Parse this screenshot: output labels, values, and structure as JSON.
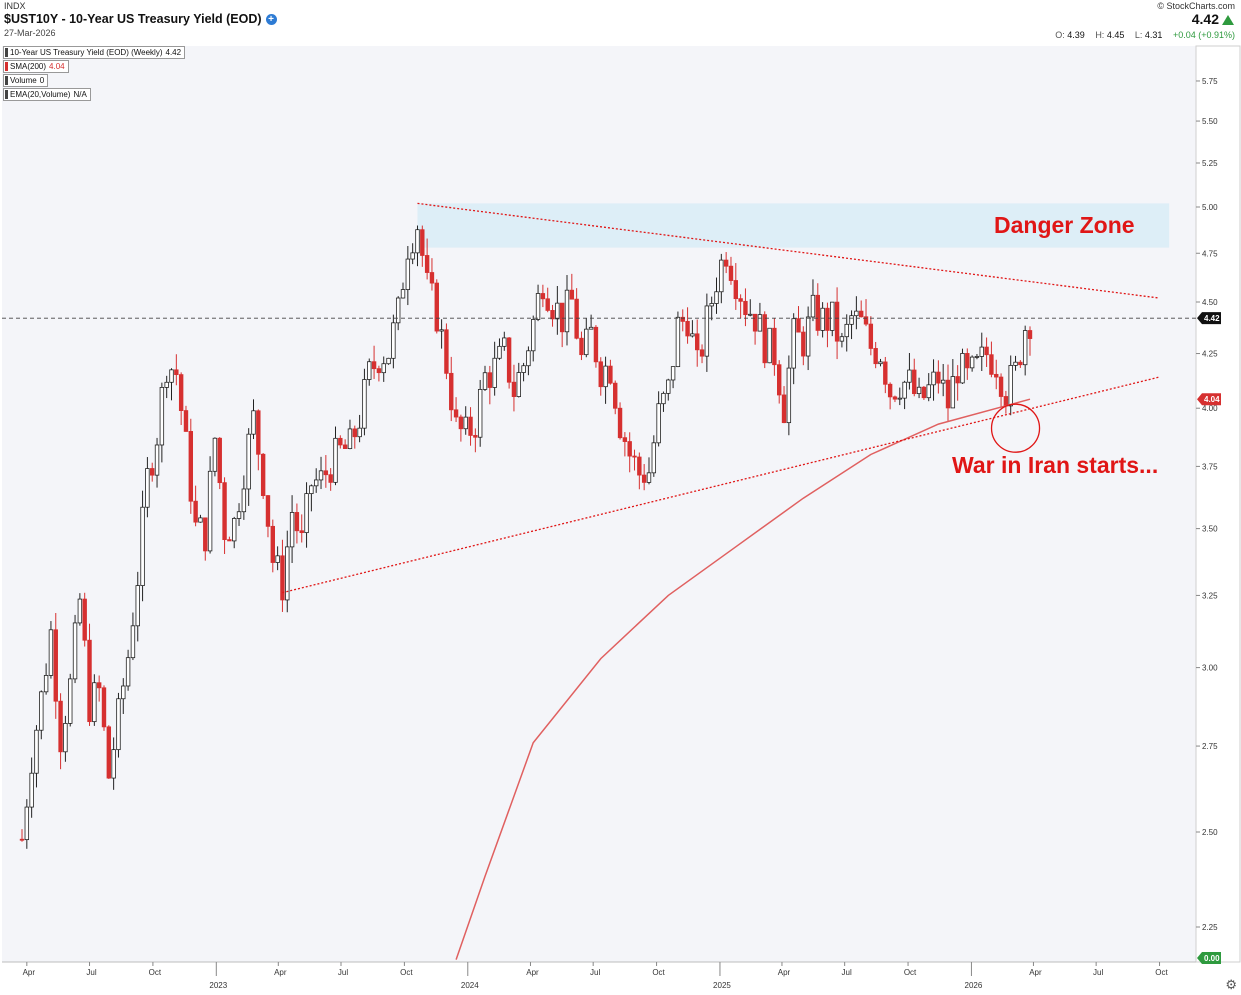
{
  "header": {
    "exchange": "INDX",
    "title": "$UST10Y - 10-Year US Treasury Yield (EOD)",
    "date": "27-Mar-2026",
    "brand": "© StockCharts.com",
    "last_price": "4.42",
    "ohlc": {
      "o_label": "O:",
      "o": "4.39",
      "h_label": "H:",
      "h": "4.45",
      "l_label": "L:",
      "l": "4.31",
      "change": "+0.04 (+0.91%)"
    }
  },
  "legend": [
    {
      "label": "10-Year US Treasury Yield (EOD) (Weekly)",
      "value": "4.42"
    },
    {
      "label": "SMA(200)",
      "value": "4.04"
    },
    {
      "label": "Volume",
      "value": "0"
    },
    {
      "label": "EMA(20,Volume)",
      "value": "N/A"
    }
  ],
  "annotations": {
    "danger_zone": "Danger Zone",
    "war": "War in Iran starts..."
  },
  "colors": {
    "up": "#222222",
    "down": "#d63030",
    "sma": "#e06060",
    "trend": "#e01616",
    "zone": "#d8ecf7",
    "price_tag": "#111111",
    "sma_tag": "#d63030",
    "zero_tag": "#2e9a3e"
  },
  "chart_data": {
    "type": "candlestick",
    "interval": "weekly",
    "x_ticks": [
      "Apr",
      "Jul",
      "Oct",
      "2023",
      "Apr",
      "Jul",
      "Oct",
      "2024",
      "Apr",
      "Jul",
      "Oct",
      "2025",
      "Apr",
      "Jul",
      "Oct",
      "2026",
      "Apr",
      "Jul",
      "Oct"
    ],
    "y_ticks": [
      "5.75",
      "5.50",
      "5.25",
      "5.00",
      "4.75",
      "4.50",
      "4.25",
      "4.00",
      "3.75",
      "3.50",
      "3.25",
      "3.00",
      "2.75",
      "2.50",
      "2.25"
    ],
    "y_scale": "log",
    "ylim": [
      2.17,
      5.9
    ],
    "price_tags": {
      "last": "4.42",
      "sma": "4.04",
      "volume": "0.00"
    },
    "path": [
      [
        "2022-03-25",
        2.48
      ],
      [
        "2022-04-08",
        2.72
      ],
      [
        "2022-04-22",
        2.9
      ],
      [
        "2022-05-06",
        3.12
      ],
      [
        "2022-05-20",
        2.78
      ],
      [
        "2022-06-03",
        2.94
      ],
      [
        "2022-06-17",
        3.23
      ],
      [
        "2022-07-01",
        2.88
      ],
      [
        "2022-07-15",
        2.92
      ],
      [
        "2022-07-29",
        2.66
      ],
      [
        "2022-08-12",
        2.84
      ],
      [
        "2022-08-26",
        3.04
      ],
      [
        "2022-09-09",
        3.32
      ],
      [
        "2022-09-23",
        3.7
      ],
      [
        "2022-10-07",
        3.89
      ],
      [
        "2022-10-21",
        4.21
      ],
      [
        "2022-11-04",
        4.16
      ],
      [
        "2022-11-18",
        3.83
      ],
      [
        "2022-12-02",
        3.5
      ],
      [
        "2022-12-16",
        3.48
      ],
      [
        "2022-12-30",
        3.87
      ],
      [
        "2023-01-13",
        3.5
      ],
      [
        "2023-01-27",
        3.52
      ],
      [
        "2023-02-10",
        3.74
      ],
      [
        "2023-02-24",
        3.95
      ],
      [
        "2023-03-10",
        3.7
      ],
      [
        "2023-03-24",
        3.38
      ],
      [
        "2023-04-07",
        3.29
      ],
      [
        "2023-04-21",
        3.57
      ],
      [
        "2023-05-05",
        3.44
      ],
      [
        "2023-05-19",
        3.68
      ],
      [
        "2023-06-02",
        3.69
      ],
      [
        "2023-06-16",
        3.76
      ],
      [
        "2023-06-30",
        3.81
      ],
      [
        "2023-07-14",
        3.83
      ],
      [
        "2023-07-28",
        3.96
      ],
      [
        "2023-08-11",
        4.15
      ],
      [
        "2023-08-25",
        4.24
      ],
      [
        "2023-09-08",
        4.26
      ],
      [
        "2023-09-22",
        4.44
      ],
      [
        "2023-10-06",
        4.8
      ],
      [
        "2023-10-20",
        4.91
      ],
      [
        "2023-11-03",
        4.57
      ],
      [
        "2023-11-17",
        4.44
      ],
      [
        "2023-12-01",
        4.2
      ],
      [
        "2023-12-15",
        3.91
      ],
      [
        "2023-12-29",
        3.88
      ],
      [
        "2024-01-12",
        3.94
      ],
      [
        "2024-01-26",
        4.14
      ],
      [
        "2024-02-09",
        4.18
      ],
      [
        "2024-02-23",
        4.25
      ],
      [
        "2024-03-08",
        4.08
      ],
      [
        "2024-03-22",
        4.2
      ],
      [
        "2024-04-05",
        4.4
      ],
      [
        "2024-04-19",
        4.62
      ],
      [
        "2024-05-03",
        4.5
      ],
      [
        "2024-05-17",
        4.42
      ],
      [
        "2024-05-31",
        4.5
      ],
      [
        "2024-06-14",
        4.22
      ],
      [
        "2024-06-28",
        4.34
      ],
      [
        "2024-07-12",
        4.18
      ],
      [
        "2024-07-26",
        4.19
      ],
      [
        "2024-08-09",
        3.94
      ],
      [
        "2024-08-23",
        3.8
      ],
      [
        "2024-09-06",
        3.72
      ],
      [
        "2024-09-20",
        3.73
      ],
      [
        "2024-10-04",
        3.97
      ],
      [
        "2024-10-18",
        4.08
      ],
      [
        "2024-11-01",
        4.38
      ],
      [
        "2024-11-15",
        4.43
      ],
      [
        "2024-11-29",
        4.18
      ],
      [
        "2024-12-13",
        4.4
      ],
      [
        "2024-12-27",
        4.62
      ],
      [
        "2025-01-10",
        4.77
      ],
      [
        "2025-01-24",
        4.62
      ],
      [
        "2025-02-07",
        4.49
      ],
      [
        "2025-02-21",
        4.43
      ],
      [
        "2025-03-07",
        4.3
      ],
      [
        "2025-03-21",
        4.25
      ],
      [
        "2025-04-04",
        4.01
      ],
      [
        "2025-04-18",
        4.33
      ],
      [
        "2025-05-02",
        4.31
      ],
      [
        "2025-05-16",
        4.44
      ],
      [
        "2025-05-30",
        4.41
      ],
      [
        "2025-06-13",
        4.41
      ],
      [
        "2025-06-27",
        4.28
      ],
      [
        "2025-07-11",
        4.42
      ],
      [
        "2025-07-25",
        4.39
      ],
      [
        "2025-08-08",
        4.28
      ],
      [
        "2025-08-22",
        4.26
      ],
      [
        "2025-09-05",
        4.08
      ],
      [
        "2025-09-19",
        4.12
      ],
      [
        "2025-10-03",
        4.11
      ],
      [
        "2025-10-17",
        4.02
      ],
      [
        "2025-10-31",
        4.08
      ],
      [
        "2025-11-14",
        4.14
      ],
      [
        "2025-11-28",
        4.02
      ],
      [
        "2025-12-12",
        4.19
      ],
      [
        "2025-12-26",
        4.13
      ],
      [
        "2026-01-09",
        4.18
      ],
      [
        "2026-01-23",
        4.25
      ],
      [
        "2026-02-06",
        4.21
      ],
      [
        "2026-02-20",
        4.08
      ],
      [
        "2026-03-06",
        4.16
      ],
      [
        "2026-03-20",
        4.38
      ],
      [
        "2026-03-27",
        4.42
      ]
    ],
    "sma200": [
      [
        "2023-12-15",
        2.17
      ],
      [
        "2024-01-26",
        2.38
      ],
      [
        "2024-04-05",
        2.76
      ],
      [
        "2024-07-12",
        3.03
      ],
      [
        "2024-10-18",
        3.25
      ],
      [
        "2025-01-24",
        3.43
      ],
      [
        "2025-05-02",
        3.62
      ],
      [
        "2025-08-08",
        3.8
      ],
      [
        "2025-11-14",
        3.93
      ],
      [
        "2026-03-27",
        4.04
      ]
    ],
    "trendlines": [
      {
        "name": "resistance",
        "from": [
          "2023-10-20",
          5.02
        ],
        "to": [
          "2026-09-30",
          4.52
        ]
      },
      {
        "name": "support",
        "from": [
          "2023-04-07",
          3.26
        ],
        "to": [
          "2026-09-30",
          4.14
        ]
      }
    ],
    "zone": {
      "name": "Danger Zone",
      "from": "2023-10-20",
      "to": "2026-10-15",
      "y_low": 4.78,
      "y_high": 5.02
    }
  }
}
